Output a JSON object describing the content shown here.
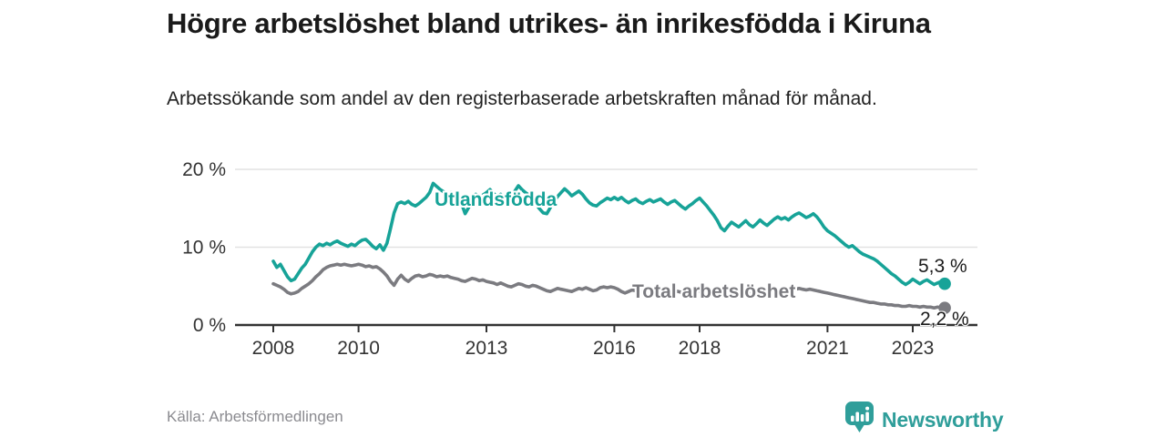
{
  "header": {
    "title": "Högre arbetslöshet bland utrikes- än inrikesfödda i Kiruna",
    "subtitle": "Arbetssökande som andel av den registerbaserade arbetskraften månad för månad."
  },
  "footer": {
    "source": "Källa: Arbetsförmedlingen",
    "logo_text": "Newsworthy"
  },
  "colors": {
    "accent_teal": "#17A398",
    "series_gray": "#7B7B80",
    "grid": "#E2E2E2",
    "axis": "#333333",
    "axis_text": "#333333",
    "title_text": "#1A1A1A",
    "logo_teal": "#2F9E9A"
  },
  "chart_data": {
    "type": "line",
    "unit": "%",
    "x_frequency": "monthly",
    "x_start": "2008-01",
    "x_end": "2023-10",
    "ylim": [
      0,
      20
    ],
    "grid": "horizontal",
    "legend_position": "inline-labels",
    "y_ticks": [
      {
        "value": 0,
        "label": "0 %"
      },
      {
        "value": 10,
        "label": "10 %"
      },
      {
        "value": 20,
        "label": "20 %"
      }
    ],
    "x_ticks": [
      {
        "year": 2008,
        "label": "2008"
      },
      {
        "year": 2010,
        "label": "2010"
      },
      {
        "year": 2013,
        "label": "2013"
      },
      {
        "year": 2016,
        "label": "2016"
      },
      {
        "year": 2018,
        "label": "2018"
      },
      {
        "year": 2021,
        "label": "2021"
      },
      {
        "year": 2023,
        "label": "2023"
      }
    ],
    "series": [
      {
        "name": "Utlandsfödda",
        "color": "#17A398",
        "end_label": "5,3 %",
        "last_value": 5.3,
        "values": [
          8.2,
          7.4,
          7.8,
          7.0,
          6.2,
          5.7,
          5.9,
          6.6,
          7.3,
          7.8,
          8.6,
          9.4,
          10.0,
          10.4,
          10.2,
          10.5,
          10.3,
          10.6,
          10.8,
          10.5,
          10.3,
          10.1,
          10.4,
          10.2,
          10.6,
          10.9,
          11.0,
          10.6,
          10.1,
          9.8,
          10.3,
          9.6,
          10.5,
          12.4,
          14.4,
          15.6,
          15.8,
          15.6,
          15.9,
          15.5,
          15.3,
          15.6,
          16.0,
          16.4,
          17.0,
          18.2,
          17.8,
          17.4,
          17.1,
          16.8,
          17.0,
          16.5,
          16.1,
          15.6,
          14.3,
          15.1,
          16.2,
          16.8,
          16.4,
          16.7,
          17.0,
          17.4,
          16.9,
          16.5,
          16.8,
          16.3,
          15.9,
          16.4,
          17.2,
          17.9,
          17.4,
          17.0,
          16.7,
          16.1,
          15.5,
          14.9,
          14.4,
          14.3,
          15.1,
          15.9,
          16.5,
          17.0,
          17.5,
          17.1,
          16.6,
          16.9,
          17.2,
          16.8,
          16.2,
          15.7,
          15.4,
          15.3,
          15.7,
          16.0,
          16.3,
          16.1,
          16.4,
          16.1,
          16.4,
          16.0,
          15.7,
          16.0,
          16.2,
          15.8,
          15.6,
          15.9,
          16.1,
          15.8,
          16.0,
          16.2,
          15.8,
          15.5,
          15.8,
          16.0,
          15.6,
          15.2,
          14.9,
          15.3,
          15.6,
          16.0,
          16.3,
          15.8,
          15.3,
          14.7,
          14.1,
          13.4,
          12.5,
          12.1,
          12.7,
          13.2,
          12.9,
          12.6,
          13.0,
          13.4,
          12.9,
          12.6,
          13.0,
          13.5,
          13.1,
          12.8,
          13.2,
          13.6,
          13.9,
          13.6,
          13.8,
          13.5,
          13.9,
          14.2,
          14.4,
          14.1,
          13.8,
          14.0,
          14.3,
          13.9,
          13.3,
          12.6,
          12.1,
          11.8,
          11.5,
          11.1,
          10.7,
          10.3,
          10.0,
          10.2,
          9.8,
          9.4,
          9.1,
          8.9,
          8.7,
          8.5,
          8.2,
          7.8,
          7.4,
          7.0,
          6.6,
          6.3,
          5.9,
          5.5,
          5.2,
          5.5,
          5.9,
          5.6,
          5.3,
          5.6,
          5.8,
          5.5,
          5.2,
          5.4,
          5.6,
          5.3
        ]
      },
      {
        "name": "Total arbetslöshet",
        "color": "#7B7B80",
        "end_label": "2,2 %",
        "last_value": 2.2,
        "values": [
          5.3,
          5.1,
          4.9,
          4.6,
          4.2,
          4.0,
          4.1,
          4.3,
          4.7,
          5.0,
          5.3,
          5.7,
          6.2,
          6.6,
          7.1,
          7.4,
          7.6,
          7.7,
          7.8,
          7.7,
          7.8,
          7.7,
          7.6,
          7.7,
          7.8,
          7.7,
          7.5,
          7.6,
          7.4,
          7.5,
          7.2,
          6.8,
          6.3,
          5.6,
          5.1,
          5.9,
          6.4,
          5.9,
          5.6,
          6.0,
          6.3,
          6.4,
          6.2,
          6.3,
          6.5,
          6.4,
          6.2,
          6.3,
          6.2,
          6.3,
          6.1,
          6.0,
          5.9,
          5.7,
          5.6,
          5.8,
          6.0,
          5.9,
          5.7,
          5.8,
          5.6,
          5.5,
          5.4,
          5.2,
          5.4,
          5.2,
          5.0,
          4.9,
          5.1,
          5.3,
          5.2,
          5.0,
          4.9,
          5.1,
          5.0,
          4.8,
          4.6,
          4.4,
          4.3,
          4.5,
          4.7,
          4.6,
          4.5,
          4.4,
          4.3,
          4.5,
          4.7,
          4.6,
          4.8,
          4.6,
          4.4,
          4.5,
          4.8,
          4.9,
          4.8,
          4.9,
          4.8,
          4.6,
          4.3,
          4.1,
          4.3,
          4.5,
          4.4,
          4.2,
          4.4,
          4.6,
          4.5,
          4.4,
          4.5,
          4.6,
          4.5,
          4.3,
          4.5,
          4.4,
          4.3,
          4.2,
          4.4,
          4.5,
          4.4,
          4.3,
          4.4,
          4.5,
          4.4,
          4.3,
          4.2,
          4.3,
          4.2,
          4.1,
          4.3,
          4.4,
          4.3,
          4.4,
          4.3,
          4.4,
          4.3,
          4.2,
          4.4,
          4.5,
          4.4,
          4.3,
          4.5,
          4.6,
          4.5,
          4.6,
          4.5,
          4.6,
          4.7,
          4.6,
          4.7,
          4.6,
          4.5,
          4.6,
          4.5,
          4.4,
          4.3,
          4.2,
          4.1,
          4.0,
          3.9,
          3.8,
          3.7,
          3.6,
          3.5,
          3.4,
          3.3,
          3.2,
          3.1,
          3.0,
          2.9,
          2.9,
          2.8,
          2.7,
          2.7,
          2.6,
          2.6,
          2.5,
          2.5,
          2.4,
          2.4,
          2.5,
          2.4,
          2.4,
          2.3,
          2.4,
          2.3,
          2.3,
          2.2,
          2.3,
          2.2,
          2.2
        ]
      }
    ]
  }
}
